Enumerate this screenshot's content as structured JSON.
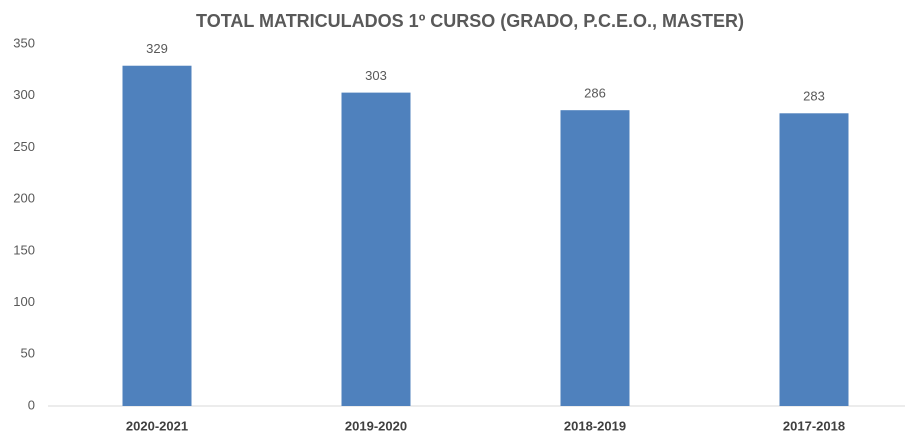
{
  "chart_data": {
    "type": "bar",
    "title": "TOTAL MATRICULADOS 1º CURSO (GRADO, P.C.E.O., MASTER)",
    "categories": [
      "2020-2021",
      "2019-2020",
      "2018-2019",
      "2017-2018"
    ],
    "values": [
      329,
      303,
      286,
      283
    ],
    "color": "#4f81bd",
    "ylim": [
      0,
      350
    ],
    "yticks": [
      0,
      50,
      100,
      150,
      200,
      250,
      300,
      350
    ],
    "grid": false,
    "data_labels": true
  }
}
